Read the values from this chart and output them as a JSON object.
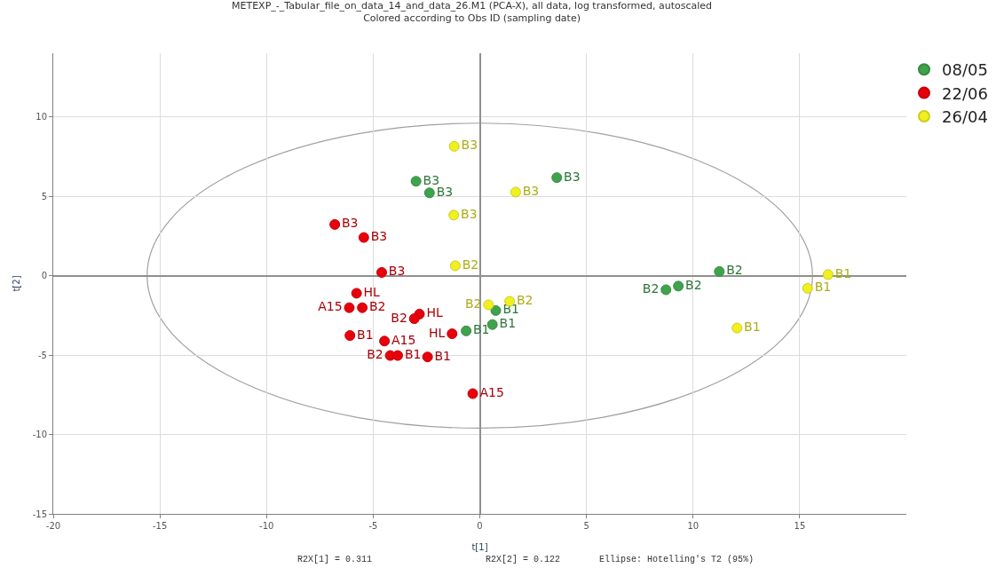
{
  "chart_data": {
    "type": "scatter",
    "title": "METEXP_-_Tabular_file_on_data_14_and_data_26.M1 (PCA-X), all data, log transformed, autoscaled",
    "subtitle": "Colored according to Obs ID (sampling date)",
    "xlabel": "t[1]",
    "ylabel": "t[2]",
    "xlim": [
      -20,
      20
    ],
    "xticks": [
      -20,
      -15,
      -10,
      -5,
      0,
      5,
      10,
      15
    ],
    "ylim": [
      -15,
      14
    ],
    "yticks": [
      -15,
      -10,
      -5,
      0,
      5,
      10
    ],
    "grid": true,
    "legend": "top right",
    "marker": "circle",
    "annotations": [
      "R2X[1] = 0.311",
      "R2X[2] = 0.122",
      "Ellipse: Hotelling's T2 (95%)"
    ],
    "series": [
      {
        "name": "08/05",
        "color": "#3fa34d",
        "x": [
          -2.99,
          -2.36,
          3.61,
          11.23,
          9.31,
          8.73,
          0.75,
          0.59,
          -0.64
        ],
        "values": [
          5.94,
          5.21,
          6.17,
          0.26,
          -0.66,
          -0.89,
          -2.2,
          -3.08,
          -3.48
        ],
        "value_labels": [
          "B3",
          "B3",
          "B3",
          "B2",
          "B2",
          "B2",
          "B1",
          "B1",
          "B1"
        ]
      },
      {
        "name": "22/06",
        "color": "#e8000b",
        "x": [
          -6.8,
          -5.44,
          -4.6,
          -5.78,
          -2.83,
          -1.3,
          -6.12,
          -4.47,
          -0.33,
          -5.51,
          -3.07,
          -4.2,
          -6.09,
          -3.85,
          -2.45
        ],
        "values": [
          3.22,
          2.4,
          0.2,
          -1.11,
          -2.42,
          -3.66,
          -2.02,
          -4.12,
          -7.43,
          -2.02,
          -2.71,
          -5.03,
          -3.77,
          -5.03,
          -5.12
        ],
        "value_labels": [
          "B3",
          "B3",
          "B3",
          "HL",
          "HL",
          "HL",
          "A15",
          "A15",
          "A15",
          "B2",
          "B2",
          "B2",
          "B1",
          "B1",
          "B1"
        ]
      },
      {
        "name": "26/04",
        "color": "#f0f020",
        "x": [
          -1.2,
          1.68,
          -1.22,
          -1.15,
          0.41,
          1.4,
          16.33,
          15.37,
          12.06
        ],
        "values": [
          8.14,
          5.26,
          3.81,
          0.62,
          -1.84,
          -1.62,
          0.07,
          -0.8,
          -3.3
        ],
        "value_labels": [
          "B3",
          "B3",
          "B3",
          "B2",
          "B2",
          "B2",
          "B1",
          "B1",
          "B1"
        ]
      }
    ]
  }
}
